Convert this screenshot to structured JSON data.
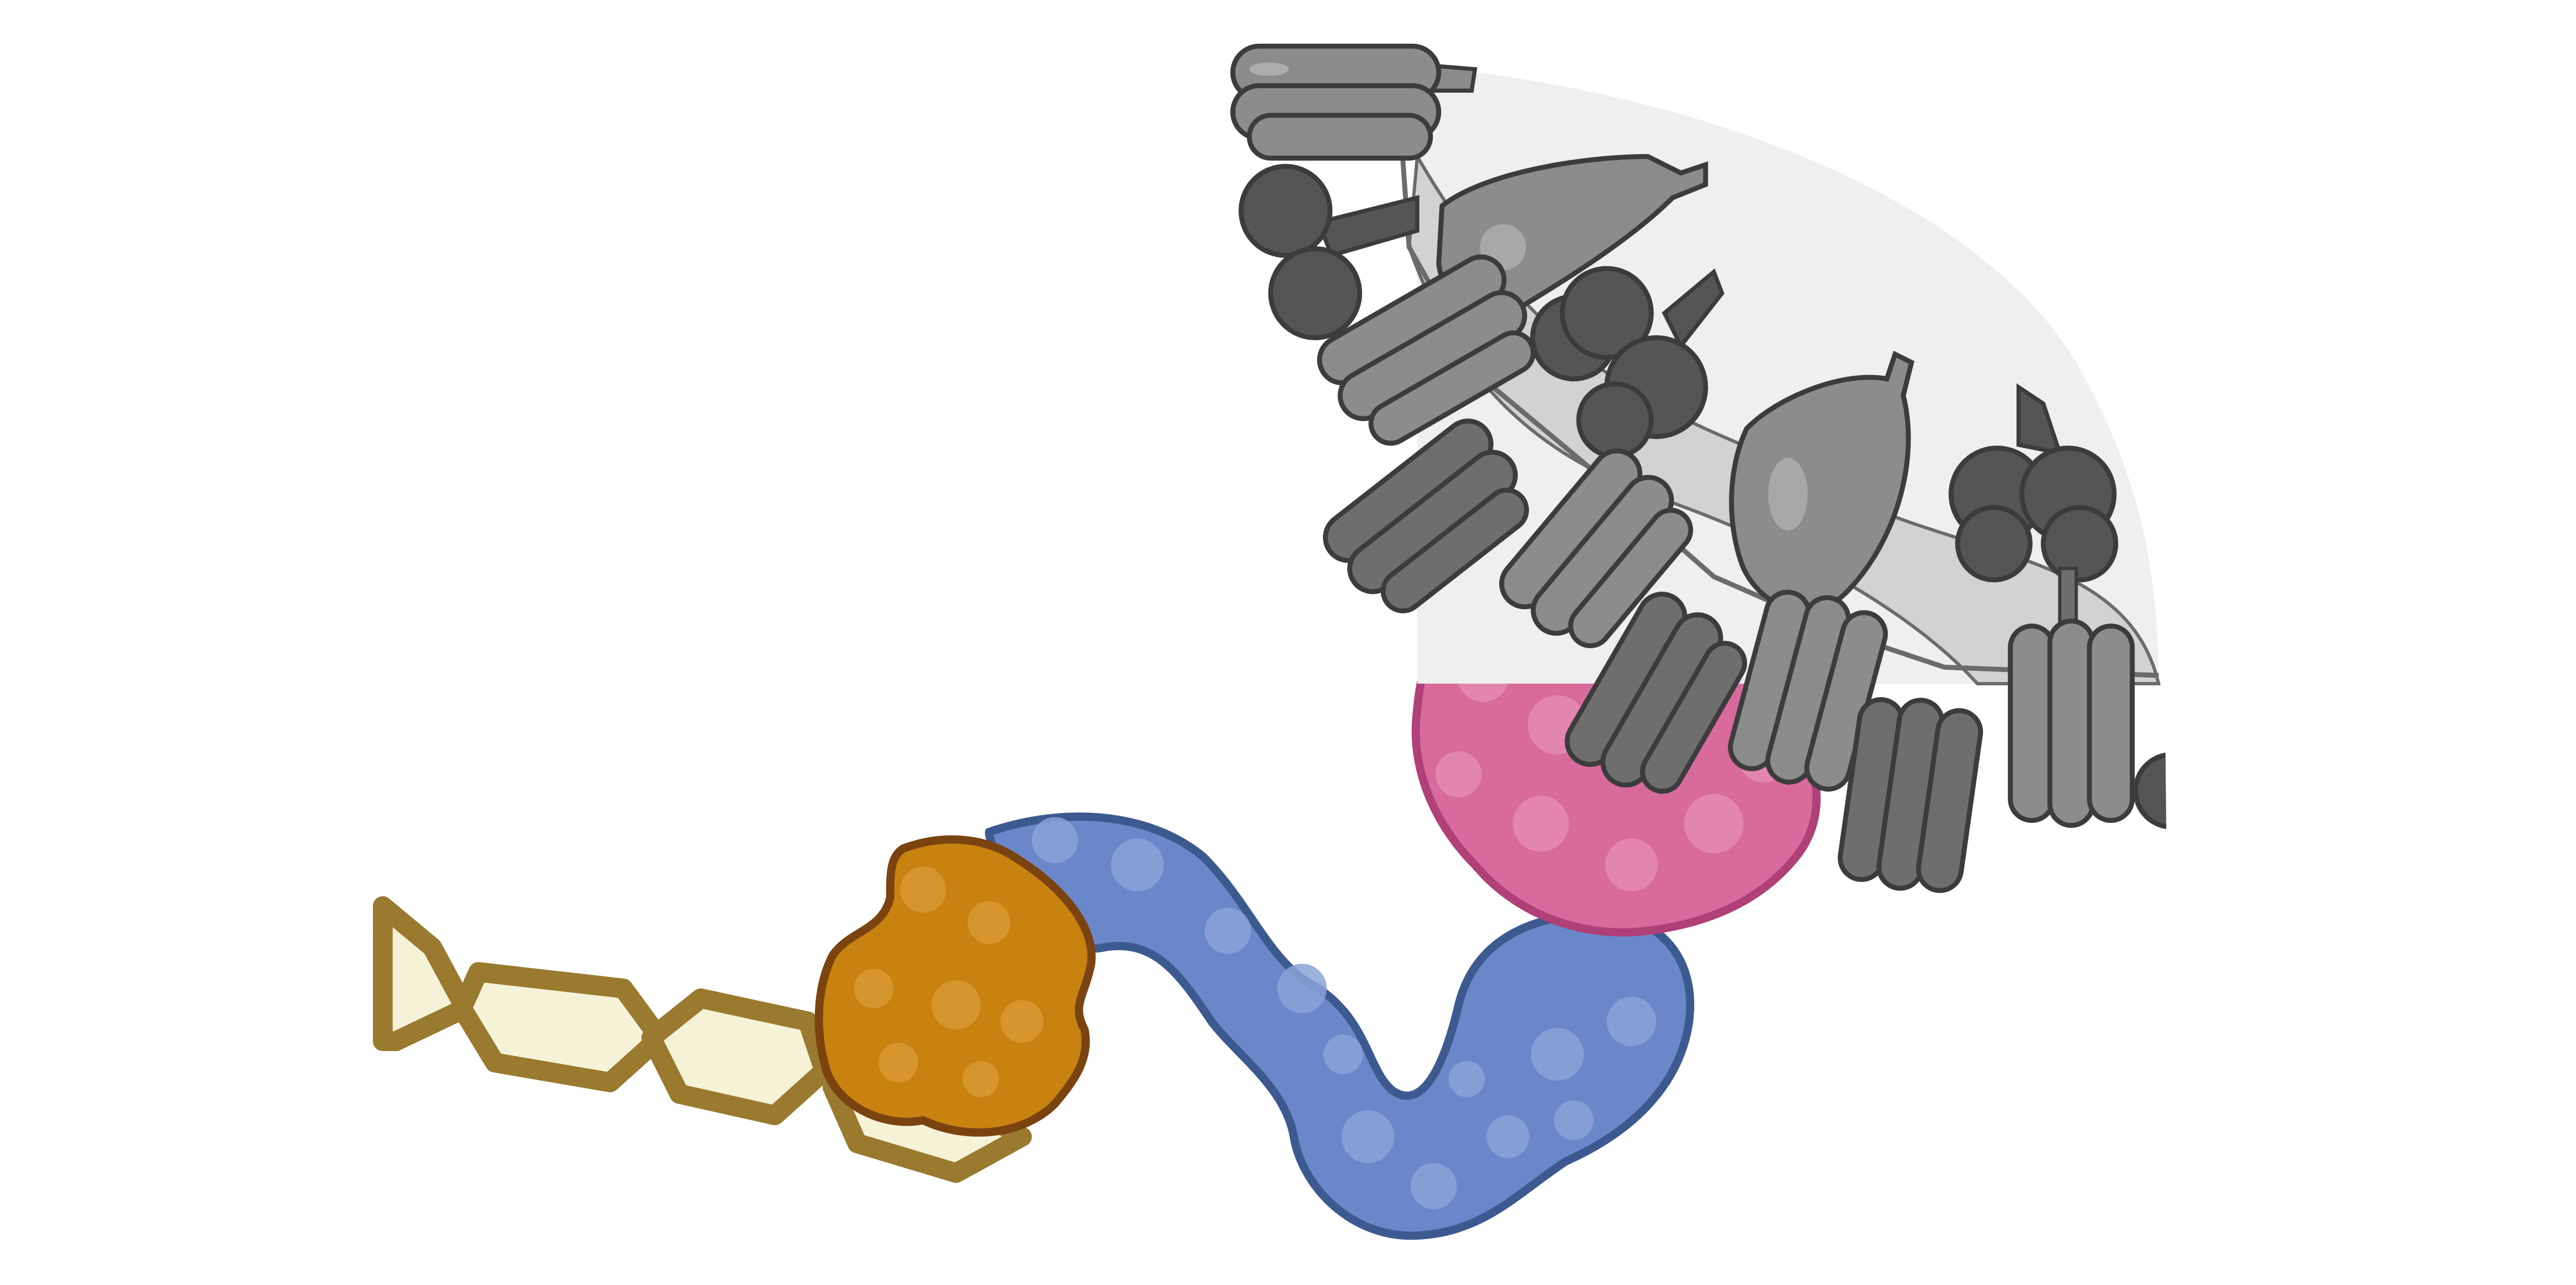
{
  "figure": {
    "background": "#ffffff",
    "colors": {
      "polysaccharide_stroke": "#997a2e",
      "polysaccharide_fill": "#f5f2d8",
      "cbm_fill": "#c8820f",
      "cbm_stroke": "#7a4310",
      "linker_fill": "#6a88c9",
      "linker_stroke": "#3d5a90",
      "pink_domain_fill": "#d86a9c",
      "pink_domain_stroke": "#b04078",
      "scaffold_fill": "#d2d2d2",
      "scaffold_stroke": "#6b6b6b",
      "light_subunit": "#8c8c8c",
      "mid_subunit": "#6e6e6e",
      "dark_subunit": "#555555",
      "outline": "#3c3c3c"
    },
    "components": [
      {
        "id": "polysaccharide-chain",
        "icon": "hexagon-chain",
        "rings": 4
      },
      {
        "id": "binding-module",
        "icon": "orange-blob"
      },
      {
        "id": "flexible-linker",
        "icon": "blue-ribbon"
      },
      {
        "id": "docking-domain",
        "icon": "pink-blob"
      },
      {
        "id": "enzyme-cluster",
        "icon": "grey-cylinders-and-globules"
      }
    ]
  }
}
